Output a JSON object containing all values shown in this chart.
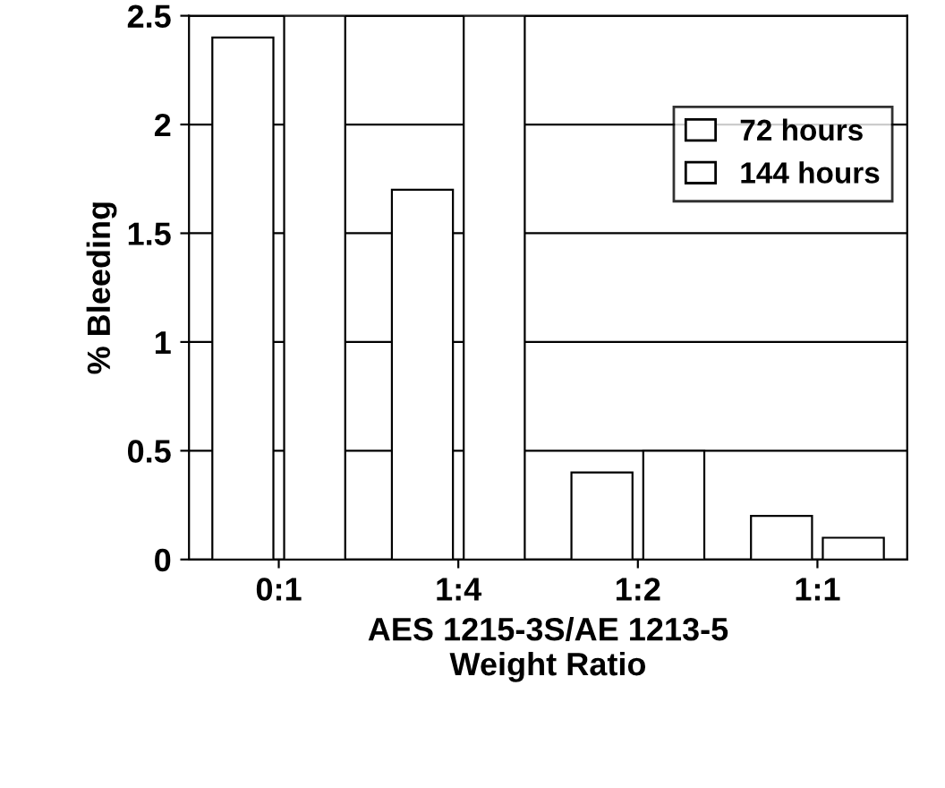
{
  "chart_data": {
    "type": "bar",
    "xlabel": "AES 1215-3S/AE 1213-5\nWeight Ratio",
    "ylabel": "% Bleeding",
    "categories": [
      "0:1",
      "1:4",
      "1:2",
      "1:1"
    ],
    "series": [
      {
        "name": "72 hours",
        "color": "#ffffff",
        "values": [
          2.4,
          1.7,
          0.4,
          0.2
        ]
      },
      {
        "name": "144 hours",
        "color": "#ffffff",
        "values": [
          2.5,
          2.5,
          0.5,
          0.1
        ]
      }
    ],
    "ylim": [
      0,
      2.5
    ],
    "yticks": [
      0,
      0.5,
      1,
      1.5,
      2,
      2.5
    ],
    "grid": "y",
    "legend": "top right"
  }
}
